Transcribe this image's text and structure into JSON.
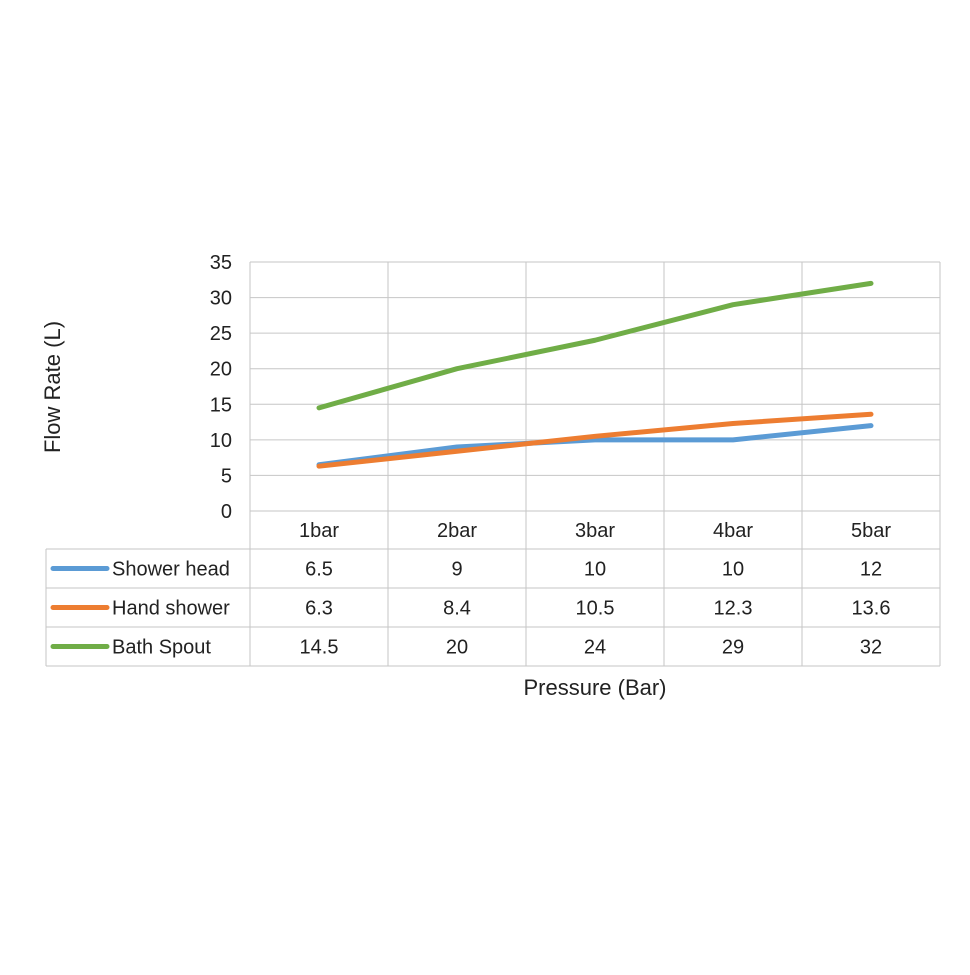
{
  "chart_data": {
    "type": "line",
    "title": "",
    "xlabel": "Pressure (Bar)",
    "ylabel": "Flow Rate (L)",
    "categories": [
      "1bar",
      "2bar",
      "3bar",
      "4bar",
      "5bar"
    ],
    "ylim": [
      0,
      35
    ],
    "yticks": [
      "0",
      "5",
      "10",
      "15",
      "20",
      "25",
      "30",
      "35"
    ],
    "grid": true,
    "legend": "data-table",
    "series": [
      {
        "name": "Shower head",
        "color": "#5b9bd5",
        "values": [
          6.5,
          9,
          10,
          10,
          12
        ],
        "labels": [
          "6.5",
          "9",
          "10",
          "10",
          "12"
        ]
      },
      {
        "name": "Hand shower",
        "color": "#ed7d31",
        "values": [
          6.3,
          8.4,
          10.5,
          12.3,
          13.6
        ],
        "labels": [
          "6.3",
          "8.4",
          "10.5",
          "12.3",
          "13.6"
        ]
      },
      {
        "name": "Bath Spout",
        "color": "#70ad47",
        "values": [
          14.5,
          20,
          24,
          29,
          32
        ],
        "labels": [
          "14.5",
          "20",
          "24",
          "29",
          "32"
        ]
      }
    ]
  }
}
